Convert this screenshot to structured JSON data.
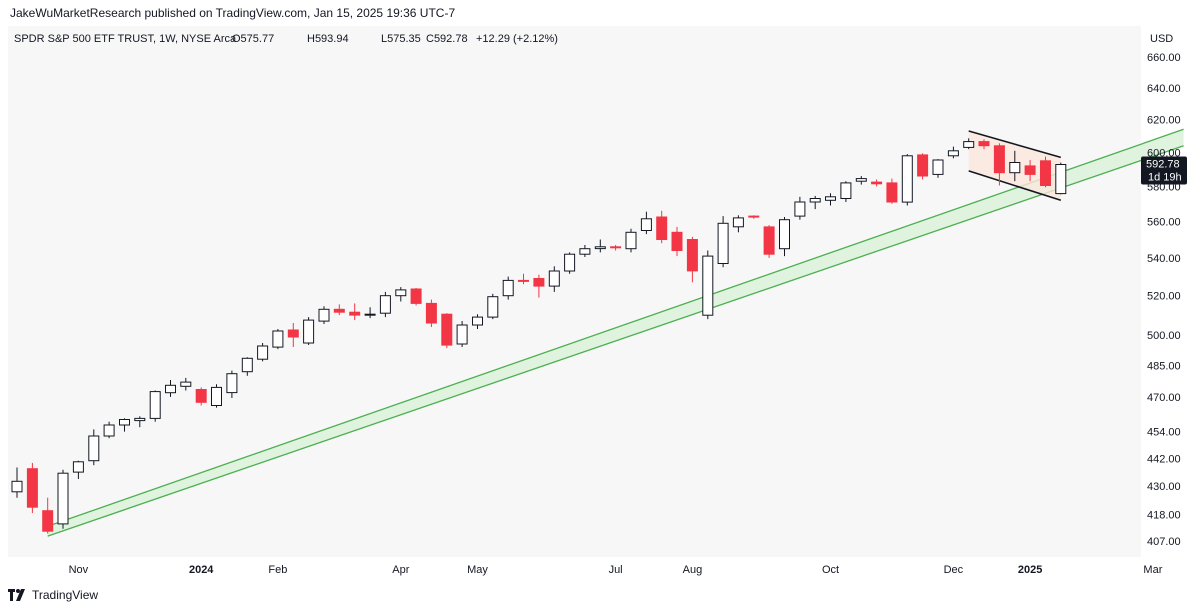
{
  "header": {
    "publisher": "JakeWuMarketResearch published on TradingView.com, Jan 15, 2025 19:36 UTC-7"
  },
  "legend": {
    "symbol": "SPDR S&P 500 ETF TRUST, 1W, NYSE Arca",
    "open": "O575.77",
    "high": "H593.94",
    "low": "L575.35",
    "close": "C592.78",
    "change": "+12.29 (+2.12%)"
  },
  "last_price": {
    "value": "592.78",
    "countdown": "1d 19h"
  },
  "footer": {
    "brand": "TradingView"
  },
  "colors": {
    "up": "#131722",
    "down": "#f23645",
    "channel_line": "#4caf50",
    "channel_fill": "#dcf2dc",
    "flag_fill": "#fbe6dc"
  },
  "chart_data": {
    "type": "candlestick",
    "currency": "USD",
    "price_scale": "log",
    "y_ticks": [
      407,
      418,
      430,
      442,
      454,
      470,
      485,
      500,
      520,
      540,
      560,
      580,
      600,
      620,
      640,
      660
    ],
    "y_tick_labels": [
      "407.00",
      "418.00",
      "430.00",
      "442.00",
      "454.00",
      "470.00",
      "485.00",
      "500.00",
      "520.00",
      "540.00",
      "560.00",
      "580.00",
      "600.00",
      "620.00",
      "640.00",
      "660.00"
    ],
    "x_labels": [
      {
        "label": "Nov",
        "week": 4,
        "bold": false
      },
      {
        "label": "2024",
        "week": 12,
        "bold": true
      },
      {
        "label": "Feb",
        "week": 17,
        "bold": false
      },
      {
        "label": "Apr",
        "week": 25,
        "bold": false
      },
      {
        "label": "May",
        "week": 30,
        "bold": false
      },
      {
        "label": "Jul",
        "week": 39,
        "bold": false
      },
      {
        "label": "Aug",
        "week": 44,
        "bold": false
      },
      {
        "label": "Oct",
        "week": 53,
        "bold": false
      },
      {
        "label": "Dec",
        "week": 61,
        "bold": false
      },
      {
        "label": "2025",
        "week": 66,
        "bold": true
      },
      {
        "label": "Mar",
        "week": 74,
        "bold": false
      }
    ],
    "candles": [
      {
        "o": 427.5,
        "h": 438.0,
        "l": 425.0,
        "c": 432.0
      },
      {
        "o": 437.5,
        "h": 440.0,
        "l": 418.5,
        "c": 421.0
      },
      {
        "o": 419.5,
        "h": 425.0,
        "l": 410.0,
        "c": 411.0
      },
      {
        "o": 414.0,
        "h": 437.0,
        "l": 412.0,
        "c": 435.5
      },
      {
        "o": 436.0,
        "h": 441.0,
        "l": 433.0,
        "c": 440.5
      },
      {
        "o": 441.0,
        "h": 455.0,
        "l": 439.0,
        "c": 452.0
      },
      {
        "o": 452.0,
        "h": 458.5,
        "l": 451.0,
        "c": 457.0
      },
      {
        "o": 457.0,
        "h": 460.0,
        "l": 454.0,
        "c": 459.5
      },
      {
        "o": 459.0,
        "h": 461.0,
        "l": 456.0,
        "c": 460.0
      },
      {
        "o": 460.0,
        "h": 473.0,
        "l": 458.5,
        "c": 472.5
      },
      {
        "o": 472.0,
        "h": 478.0,
        "l": 470.0,
        "c": 475.5
      },
      {
        "o": 475.0,
        "h": 479.0,
        "l": 473.0,
        "c": 477.0
      },
      {
        "o": 473.5,
        "h": 474.5,
        "l": 466.0,
        "c": 467.5
      },
      {
        "o": 466.0,
        "h": 476.0,
        "l": 465.0,
        "c": 474.5
      },
      {
        "o": 472.0,
        "h": 482.5,
        "l": 469.5,
        "c": 481.0
      },
      {
        "o": 482.0,
        "h": 489.0,
        "l": 480.0,
        "c": 488.5
      },
      {
        "o": 488.0,
        "h": 496.0,
        "l": 487.0,
        "c": 494.5
      },
      {
        "o": 494.0,
        "h": 503.0,
        "l": 493.0,
        "c": 502.0
      },
      {
        "o": 502.5,
        "h": 506.0,
        "l": 494.0,
        "c": 499.0
      },
      {
        "o": 496.0,
        "h": 509.0,
        "l": 495.0,
        "c": 507.5
      },
      {
        "o": 507.0,
        "h": 514.5,
        "l": 505.5,
        "c": 513.0
      },
      {
        "o": 513.0,
        "h": 515.5,
        "l": 510.0,
        "c": 511.5
      },
      {
        "o": 511.5,
        "h": 516.0,
        "l": 507.5,
        "c": 510.0
      },
      {
        "o": 510.0,
        "h": 514.0,
        "l": 508.5,
        "c": 510.5
      },
      {
        "o": 511.0,
        "h": 522.0,
        "l": 509.0,
        "c": 520.0
      },
      {
        "o": 520.0,
        "h": 524.5,
        "l": 517.0,
        "c": 523.0
      },
      {
        "o": 523.5,
        "h": 524.0,
        "l": 515.0,
        "c": 516.0
      },
      {
        "o": 516.0,
        "h": 518.0,
        "l": 504.0,
        "c": 506.0
      },
      {
        "o": 510.5,
        "h": 511.0,
        "l": 493.5,
        "c": 495.0
      },
      {
        "o": 495.5,
        "h": 507.0,
        "l": 494.0,
        "c": 505.0
      },
      {
        "o": 505.0,
        "h": 510.5,
        "l": 503.0,
        "c": 509.0
      },
      {
        "o": 509.0,
        "h": 521.0,
        "l": 508.0,
        "c": 519.5
      },
      {
        "o": 520.0,
        "h": 530.0,
        "l": 518.0,
        "c": 528.0
      },
      {
        "o": 528.0,
        "h": 531.5,
        "l": 526.0,
        "c": 527.5
      },
      {
        "o": 529.0,
        "h": 531.0,
        "l": 519.0,
        "c": 525.0
      },
      {
        "o": 525.0,
        "h": 535.5,
        "l": 522.0,
        "c": 533.0
      },
      {
        "o": 533.0,
        "h": 543.0,
        "l": 531.5,
        "c": 542.0
      },
      {
        "o": 542.0,
        "h": 547.0,
        "l": 540.5,
        "c": 545.0
      },
      {
        "o": 545.0,
        "h": 550.0,
        "l": 543.0,
        "c": 546.0
      },
      {
        "o": 546.0,
        "h": 547.0,
        "l": 544.0,
        "c": 545.5
      },
      {
        "o": 545.0,
        "h": 556.0,
        "l": 543.0,
        "c": 554.0
      },
      {
        "o": 555.0,
        "h": 565.5,
        "l": 553.0,
        "c": 561.5
      },
      {
        "o": 562.5,
        "h": 566.0,
        "l": 548.0,
        "c": 550.0
      },
      {
        "o": 554.0,
        "h": 557.0,
        "l": 541.0,
        "c": 544.0
      },
      {
        "o": 550.0,
        "h": 551.5,
        "l": 527.0,
        "c": 533.0
      },
      {
        "o": 510.0,
        "h": 544.0,
        "l": 508.0,
        "c": 541.0
      },
      {
        "o": 537.0,
        "h": 563.0,
        "l": 535.0,
        "c": 559.0
      },
      {
        "o": 557.0,
        "h": 563.5,
        "l": 554.0,
        "c": 562.0
      },
      {
        "o": 563.0,
        "h": 563.5,
        "l": 561.5,
        "c": 562.5
      },
      {
        "o": 557.0,
        "h": 558.0,
        "l": 540.0,
        "c": 542.0
      },
      {
        "o": 545.0,
        "h": 562.5,
        "l": 541.0,
        "c": 561.0
      },
      {
        "o": 563.0,
        "h": 574.0,
        "l": 561.0,
        "c": 571.0
      },
      {
        "o": 571.0,
        "h": 574.5,
        "l": 567.0,
        "c": 573.0
      },
      {
        "o": 572.0,
        "h": 576.0,
        "l": 569.0,
        "c": 574.0
      },
      {
        "o": 573.0,
        "h": 583.0,
        "l": 571.0,
        "c": 582.0
      },
      {
        "o": 583.0,
        "h": 586.0,
        "l": 581.0,
        "c": 584.5
      },
      {
        "o": 582.5,
        "h": 584.0,
        "l": 580.0,
        "c": 581.5
      },
      {
        "o": 582.0,
        "h": 584.5,
        "l": 570.0,
        "c": 571.0
      },
      {
        "o": 571.0,
        "h": 599.0,
        "l": 569.0,
        "c": 598.0
      },
      {
        "o": 598.5,
        "h": 599.5,
        "l": 584.0,
        "c": 586.0
      },
      {
        "o": 587.0,
        "h": 596.0,
        "l": 585.0,
        "c": 595.5
      },
      {
        "o": 598.0,
        "h": 603.5,
        "l": 596.5,
        "c": 601.0
      },
      {
        "o": 603.0,
        "h": 608.5,
        "l": 602.0,
        "c": 606.5
      },
      {
        "o": 606.5,
        "h": 608.0,
        "l": 602.0,
        "c": 604.0
      },
      {
        "o": 604.0,
        "h": 605.5,
        "l": 580.5,
        "c": 588.0
      },
      {
        "o": 588.0,
        "h": 601.0,
        "l": 583.0,
        "c": 594.0
      },
      {
        "o": 592.0,
        "h": 595.5,
        "l": 583.0,
        "c": 587.0
      },
      {
        "o": 595.0,
        "h": 597.5,
        "l": 579.5,
        "c": 580.5
      },
      {
        "o": 575.77,
        "h": 593.94,
        "l": 575.35,
        "c": 592.78
      }
    ],
    "channel": {
      "lower": [
        {
          "week": 2,
          "price": 409
        },
        {
          "week": 76,
          "price": 604
        }
      ],
      "upper": [
        {
          "week": 2,
          "price": 413
        },
        {
          "week": 76,
          "price": 614
        }
      ]
    },
    "flag": {
      "upper": [
        {
          "week": 62,
          "price": 613
        },
        {
          "week": 68,
          "price": 597
        }
      ],
      "lower": [
        {
          "week": 62,
          "price": 589
        },
        {
          "week": 68,
          "price": 572
        }
      ]
    }
  }
}
